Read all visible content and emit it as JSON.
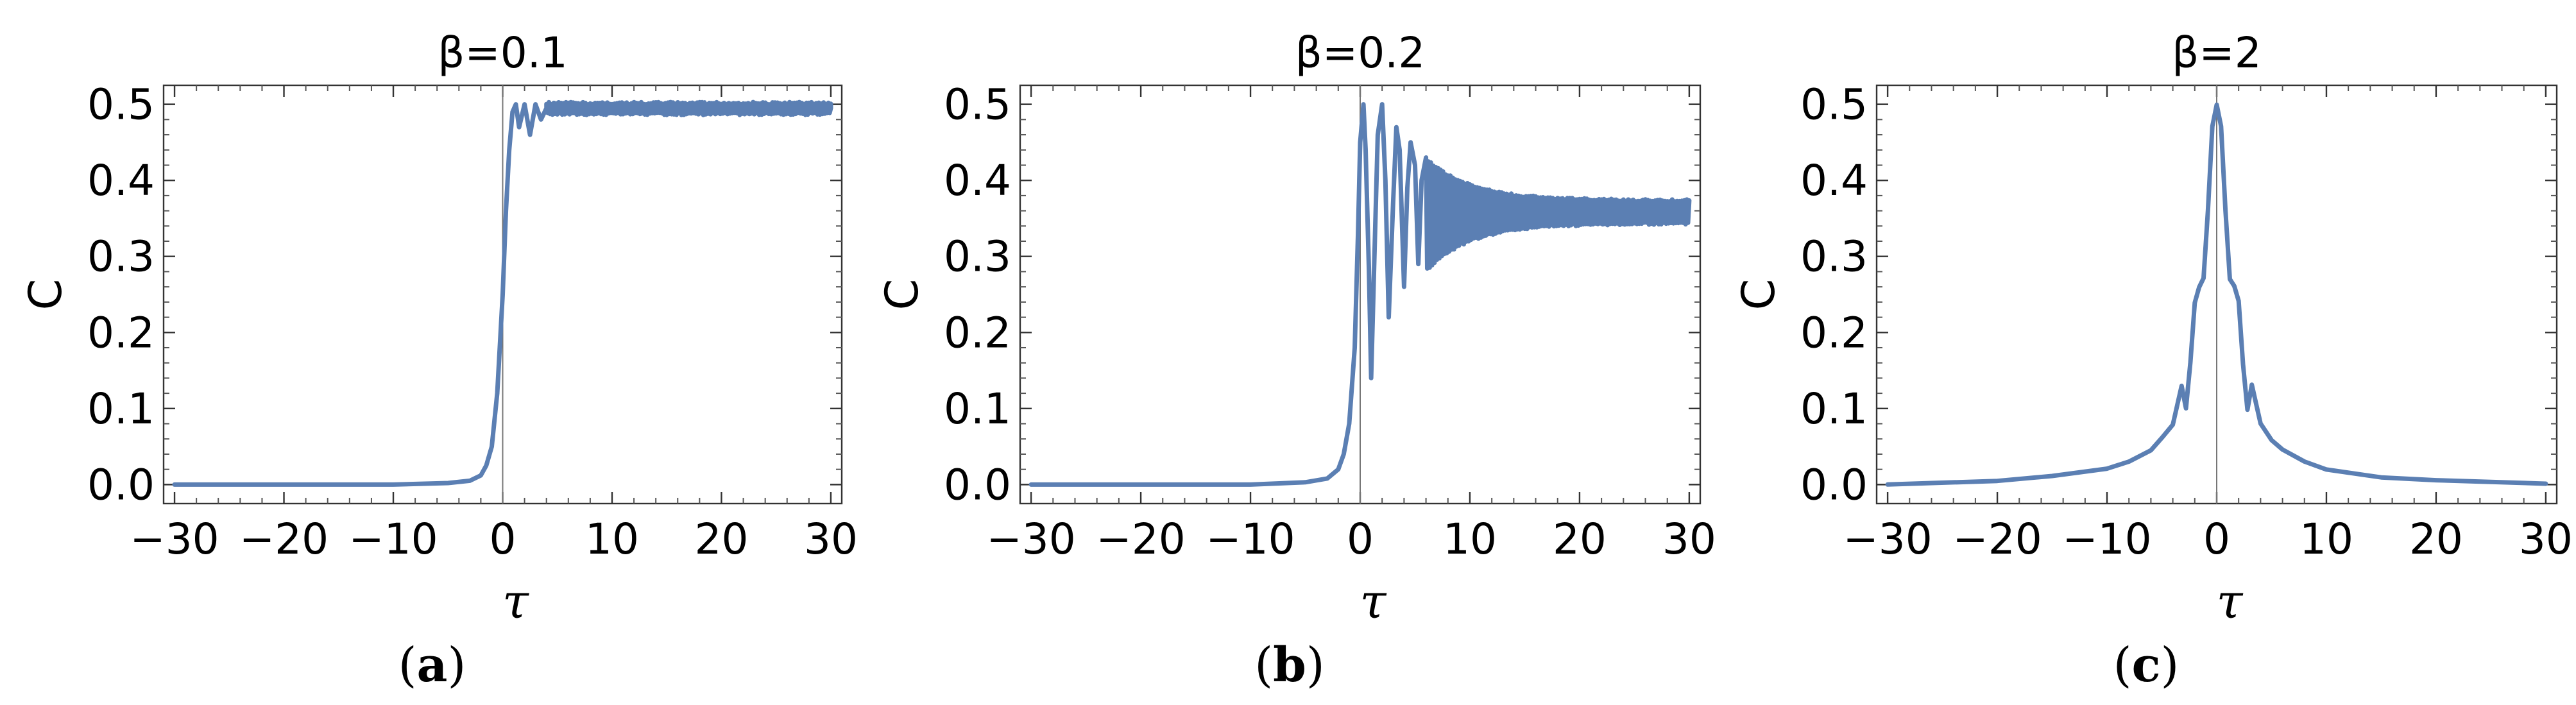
{
  "chart_data": [
    {
      "type": "line",
      "panel_label": "a",
      "title": "β=0.1",
      "xlabel": "τ",
      "ylabel": "C",
      "xlim": [
        -31,
        31
      ],
      "ylim": [
        -0.025,
        0.525
      ],
      "xticks": [
        -30,
        -20,
        -10,
        0,
        10,
        20,
        30
      ],
      "yticks": [
        0.0,
        0.1,
        0.2,
        0.3,
        0.4,
        0.5
      ],
      "xtick_labels": [
        "−30",
        "−20",
        "−10",
        "0",
        "10",
        "20",
        "30"
      ],
      "ytick_labels": [
        "0.0",
        "0.1",
        "0.2",
        "0.3",
        "0.4",
        "0.5"
      ],
      "grid": false,
      "vertical_line_at_x": 0,
      "color": "#5b7fb3",
      "series": [
        {
          "x": [
            -30,
            -10,
            -5,
            -3,
            -2,
            -1.5,
            -1,
            -0.5,
            0,
            0.3,
            0.6,
            0.9,
            1.2,
            1.5,
            2,
            2.5,
            3,
            3.5,
            4,
            5,
            6,
            8,
            10,
            15,
            20,
            25,
            30
          ],
          "y": [
            0.0,
            0.0,
            0.002,
            0.005,
            0.012,
            0.025,
            0.05,
            0.12,
            0.25,
            0.36,
            0.44,
            0.49,
            0.5,
            0.47,
            0.5,
            0.46,
            0.5,
            0.48,
            0.495,
            0.495,
            0.49,
            0.495,
            0.495,
            0.495,
            0.495,
            0.495,
            0.495
          ],
          "band": [
            [
              4,
              30,
              0.486,
              0.503
            ]
          ]
        }
      ]
    },
    {
      "type": "line",
      "panel_label": "b",
      "title": "β=0.2",
      "xlabel": "τ",
      "ylabel": "C",
      "xlim": [
        -31,
        31
      ],
      "ylim": [
        -0.025,
        0.525
      ],
      "xticks": [
        -30,
        -20,
        -10,
        0,
        10,
        20,
        30
      ],
      "yticks": [
        0.0,
        0.1,
        0.2,
        0.3,
        0.4,
        0.5
      ],
      "xtick_labels": [
        "−30",
        "−20",
        "−10",
        "0",
        "10",
        "20",
        "30"
      ],
      "ytick_labels": [
        "0.0",
        "0.1",
        "0.2",
        "0.3",
        "0.4",
        "0.5"
      ],
      "grid": false,
      "vertical_line_at_x": 0,
      "color": "#5b7fb3",
      "series": [
        {
          "x": [
            -30,
            -10,
            -5,
            -3,
            -2,
            -1.5,
            -1,
            -0.5,
            -0.2,
            0,
            0.3,
            0.5,
            0.8,
            1.0,
            1.3,
            1.6,
            2.0,
            2.3,
            2.6,
            3.0,
            3.3,
            3.6,
            4.0,
            4.3,
            4.6,
            5.0,
            5.3,
            5.6,
            6.0
          ],
          "y": [
            0.0,
            0.0,
            0.003,
            0.008,
            0.02,
            0.04,
            0.08,
            0.18,
            0.33,
            0.45,
            0.5,
            0.44,
            0.28,
            0.14,
            0.3,
            0.46,
            0.5,
            0.4,
            0.22,
            0.37,
            0.47,
            0.44,
            0.26,
            0.39,
            0.45,
            0.42,
            0.29,
            0.4,
            0.43
          ],
          "band": [
            [
              6,
              30,
              0.28,
              0.43,
              0.342,
              0.375
            ]
          ]
        }
      ]
    },
    {
      "type": "line",
      "panel_label": "c",
      "title": "β=2",
      "xlabel": "τ",
      "ylabel": "C",
      "xlim": [
        -31,
        31
      ],
      "ylim": [
        -0.025,
        0.525
      ],
      "xticks": [
        -30,
        -20,
        -10,
        0,
        10,
        20,
        30
      ],
      "yticks": [
        0.0,
        0.1,
        0.2,
        0.3,
        0.4,
        0.5
      ],
      "xtick_labels": [
        "−30",
        "−20",
        "−10",
        "0",
        "10",
        "20",
        "30"
      ],
      "ytick_labels": [
        "0.0",
        "0.1",
        "0.2",
        "0.3",
        "0.4",
        "0.5"
      ],
      "grid": false,
      "vertical_line_at_x": 0,
      "color": "#5b7fb3",
      "series": [
        {
          "x": [
            -30,
            -20,
            -15,
            -10,
            -8,
            -6,
            -5,
            -4,
            -3.2,
            -2.8,
            -2.4,
            -2,
            -1.6,
            -1.2,
            -0.8,
            -0.4,
            0,
            0.4,
            0.8,
            1.2,
            1.6,
            2,
            2.4,
            2.8,
            3.2,
            4,
            5,
            6,
            8,
            10,
            15,
            20,
            30
          ],
          "y": [
            0.0,
            0.005,
            0.01,
            0.02,
            0.03,
            0.045,
            0.06,
            0.08,
            0.13,
            0.1,
            0.16,
            0.24,
            0.26,
            0.27,
            0.36,
            0.47,
            0.5,
            0.47,
            0.36,
            0.27,
            0.26,
            0.24,
            0.16,
            0.1,
            0.13,
            0.08,
            0.06,
            0.045,
            0.03,
            0.02,
            0.01,
            0.005,
            0.0
          ]
        }
      ]
    }
  ]
}
